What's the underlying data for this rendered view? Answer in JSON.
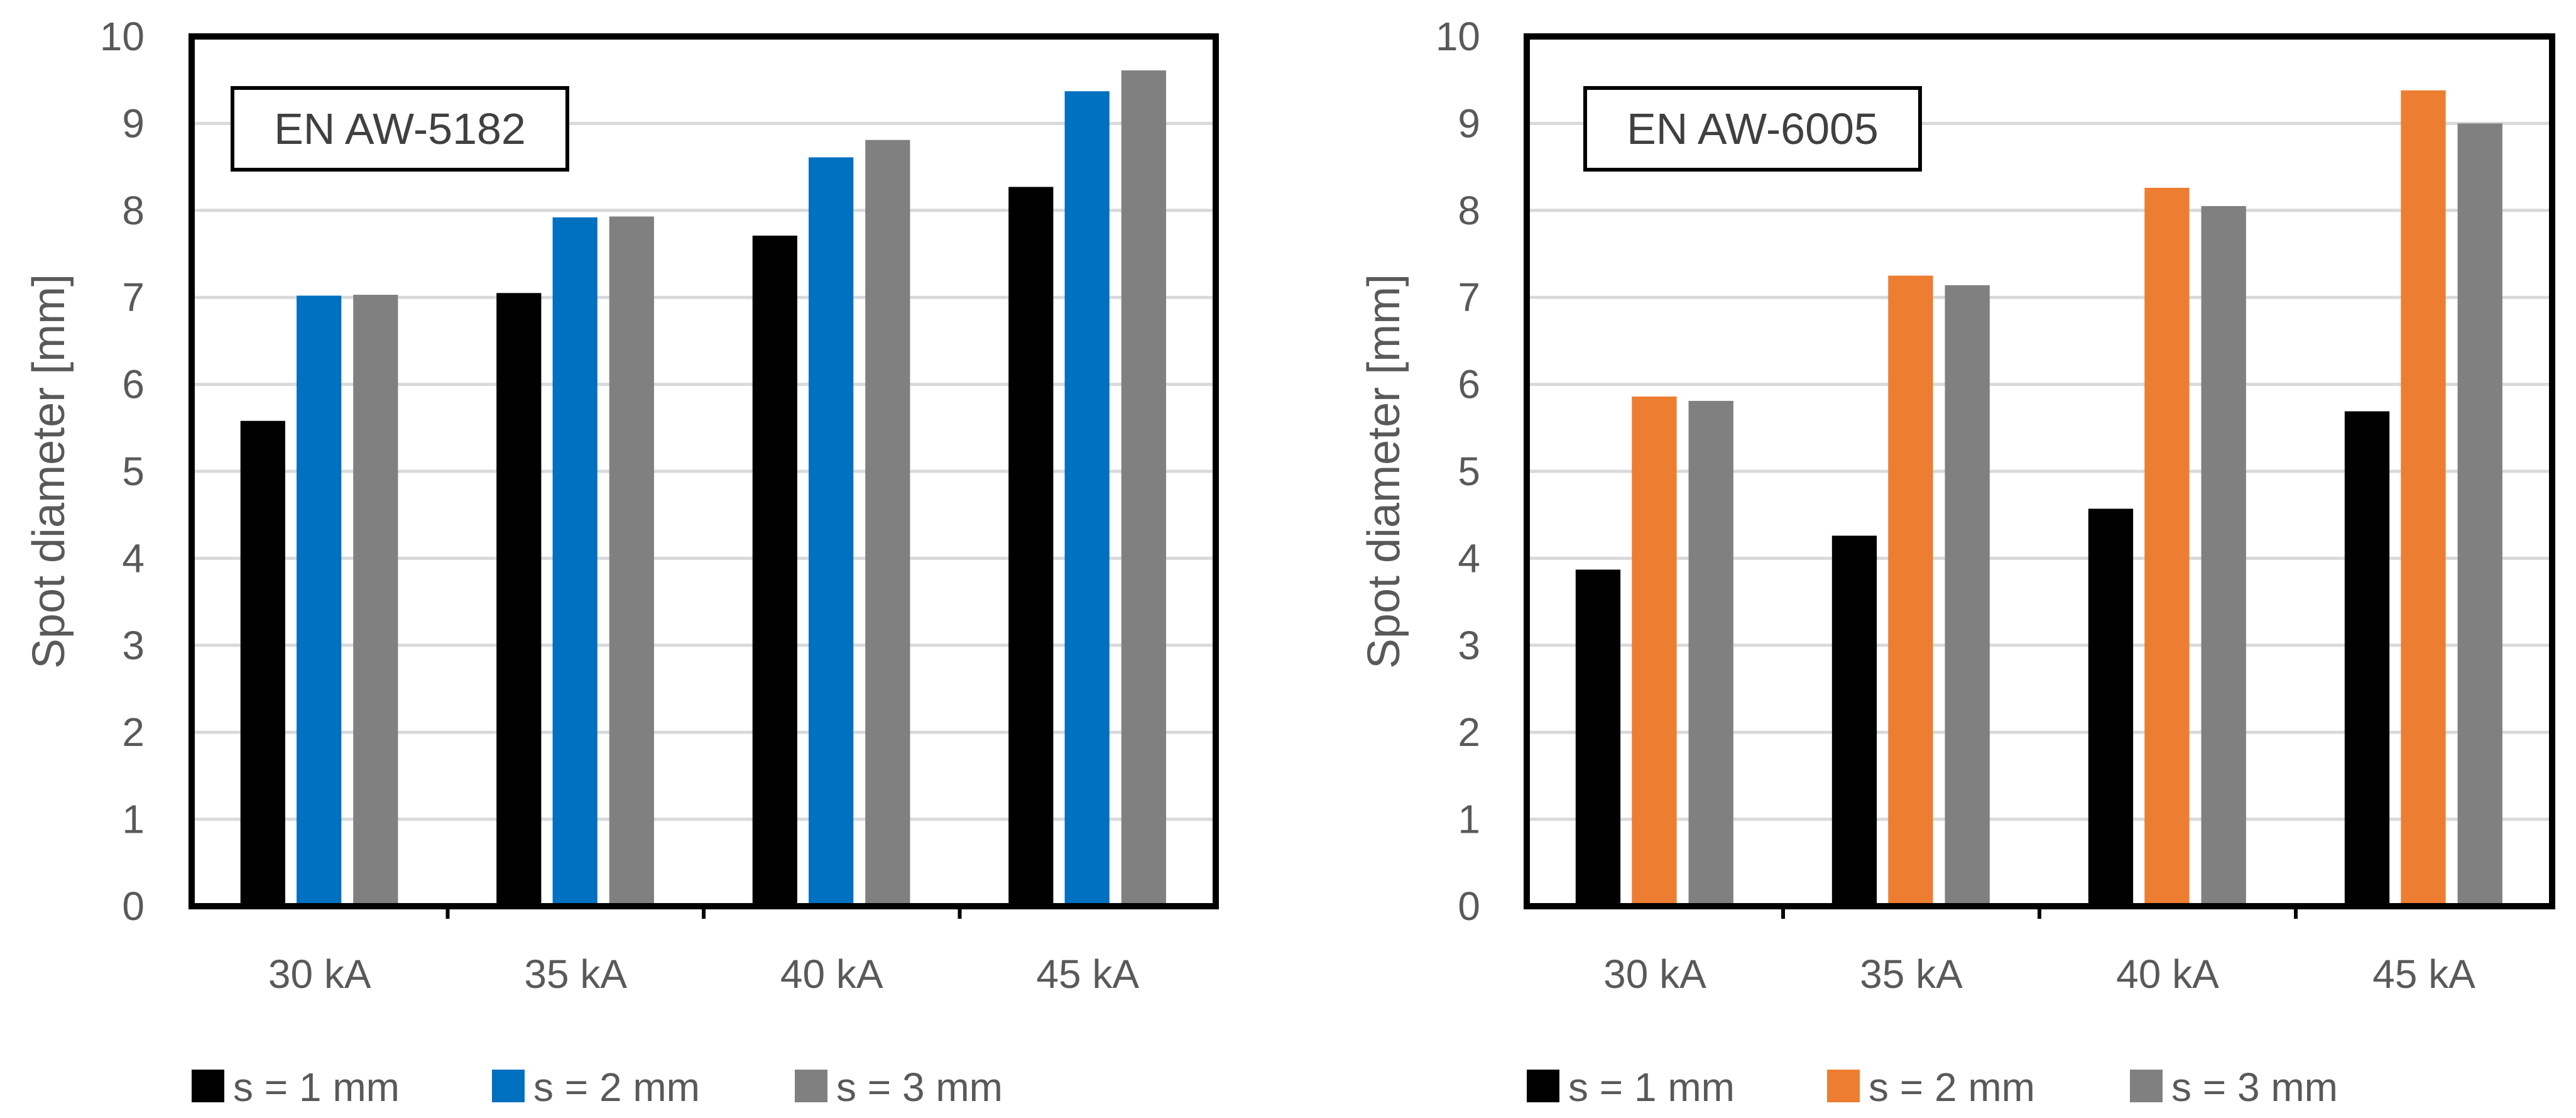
{
  "figure": {
    "background": "#ffffff"
  },
  "chart_data": [
    {
      "type": "bar",
      "title": "EN AW-5182",
      "xlabel": "",
      "ylabel": "Spot diameter [mm]",
      "ylim": [
        0,
        10
      ],
      "yticks": [
        "0",
        "1",
        "2",
        "3",
        "4",
        "5",
        "6",
        "7",
        "8",
        "9",
        "10"
      ],
      "grid": true,
      "categories": [
        "30 kA",
        "35 kA",
        "40 kA",
        "45 kA"
      ],
      "series": [
        {
          "name": "s = 1 mm",
          "color": "#000000",
          "values": [
            5.58,
            7.05,
            7.71,
            8.27
          ]
        },
        {
          "name": "s = 2 mm",
          "color": "#0070c0",
          "values": [
            7.02,
            7.92,
            8.61,
            9.37
          ]
        },
        {
          "name": "s = 3 mm",
          "color": "#808080",
          "values": [
            7.03,
            7.93,
            8.81,
            9.61
          ]
        }
      ],
      "legend_position": "bottom"
    },
    {
      "type": "bar",
      "title": "EN AW-6005",
      "xlabel": "",
      "ylabel": "Spot diameter [mm]",
      "ylim": [
        0,
        10
      ],
      "yticks": [
        "0",
        "1",
        "2",
        "3",
        "4",
        "5",
        "6",
        "7",
        "8",
        "9",
        "10"
      ],
      "grid": true,
      "categories": [
        "30 kA",
        "35 kA",
        "40 kA",
        "45 kA"
      ],
      "series": [
        {
          "name": "s = 1 mm",
          "color": "#000000",
          "values": [
            3.87,
            4.26,
            4.57,
            5.69
          ]
        },
        {
          "name": "s = 2 mm",
          "color": "#ed7d31",
          "values": [
            5.86,
            7.25,
            8.26,
            9.38
          ]
        },
        {
          "name": "s = 3 mm",
          "color": "#808080",
          "values": [
            5.81,
            7.14,
            8.05,
            9.0
          ]
        }
      ],
      "legend_position": "bottom"
    }
  ]
}
